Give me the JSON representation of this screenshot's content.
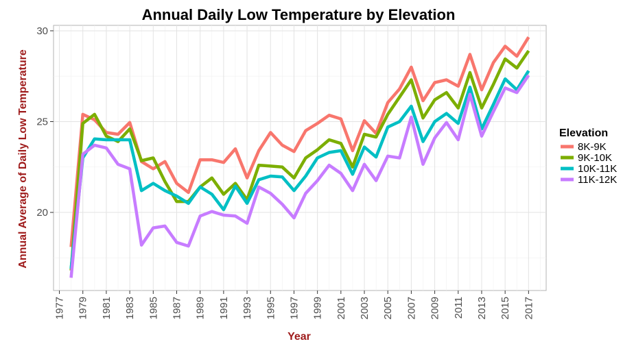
{
  "chart_data": {
    "type": "line",
    "title": "Annual Daily Low Temperature by Elevation",
    "xlabel": "Year",
    "ylabel": "Annual Average of Daily Low Temperature",
    "xlim": [
      1976.5,
      2018.5
    ],
    "ylim": [
      15.7,
      30.3
    ],
    "grid": true,
    "legend": {
      "title": "Elevation",
      "placement": "right"
    },
    "xticks": [
      1977,
      1979,
      1981,
      1983,
      1985,
      1987,
      1989,
      1991,
      1993,
      1995,
      1997,
      1999,
      2001,
      2003,
      2005,
      2007,
      2009,
      2011,
      2013,
      2015,
      2017
    ],
    "yticks": [
      20,
      25,
      30
    ],
    "x": [
      1978,
      1979,
      1980,
      1981,
      1982,
      1983,
      1984,
      1985,
      1986,
      1987,
      1988,
      1989,
      1990,
      1991,
      1992,
      1993,
      1994,
      1995,
      1996,
      1997,
      1998,
      1999,
      2000,
      2001,
      2002,
      2003,
      2004,
      2005,
      2006,
      2007,
      2008,
      2009,
      2010,
      2011,
      2012,
      2013,
      2014,
      2015,
      2016,
      2017
    ],
    "series": [
      {
        "name": "8K-9K",
        "color": "#F8766D",
        "values": [
          18.1,
          25.4,
          25.1,
          24.4,
          24.3,
          24.95,
          22.8,
          22.4,
          22.8,
          21.6,
          21.1,
          22.9,
          22.9,
          22.75,
          23.5,
          21.9,
          23.4,
          24.4,
          23.7,
          23.35,
          24.5,
          24.9,
          25.35,
          25.15,
          23.4,
          25.05,
          24.35,
          26.05,
          26.8,
          28.0,
          26.15,
          27.15,
          27.3,
          26.95,
          28.7,
          26.75,
          28.25,
          29.15,
          28.6,
          29.65
        ]
      },
      {
        "name": "9K-10K",
        "color": "#7CAE00",
        "values": [
          16.8,
          24.9,
          25.4,
          24.2,
          23.9,
          24.6,
          22.85,
          23.0,
          21.7,
          20.6,
          20.6,
          21.4,
          21.9,
          21.0,
          21.6,
          20.7,
          22.6,
          22.55,
          22.5,
          21.9,
          23.0,
          23.45,
          24.0,
          23.8,
          22.5,
          24.3,
          24.15,
          25.4,
          26.35,
          27.3,
          25.2,
          26.2,
          26.6,
          25.75,
          27.7,
          25.75,
          27.05,
          28.45,
          27.95,
          28.9
        ]
      },
      {
        "name": "10K-11K",
        "color": "#00BFC4",
        "values": [
          16.9,
          23.0,
          24.05,
          24.0,
          24.0,
          24.0,
          21.2,
          21.6,
          21.2,
          20.9,
          20.5,
          21.4,
          21.0,
          20.15,
          21.45,
          20.5,
          21.8,
          22.0,
          21.95,
          21.2,
          22.0,
          23.0,
          23.3,
          23.4,
          22.1,
          23.6,
          23.05,
          24.7,
          25.0,
          25.85,
          23.9,
          25.0,
          25.45,
          24.9,
          26.9,
          24.6,
          25.95,
          27.35,
          26.75,
          27.8
        ]
      },
      {
        "name": "11K-12K",
        "color": "#C77CFF",
        "values": [
          16.4,
          23.2,
          23.7,
          23.55,
          22.65,
          22.4,
          18.2,
          19.15,
          19.25,
          18.35,
          18.15,
          19.8,
          20.05,
          19.85,
          19.8,
          19.4,
          21.4,
          21.05,
          20.45,
          19.7,
          21.05,
          21.75,
          22.6,
          22.15,
          21.2,
          22.65,
          21.75,
          23.1,
          23.0,
          25.25,
          22.65,
          24.1,
          24.95,
          24.0,
          26.5,
          24.2,
          25.55,
          26.85,
          26.6,
          27.55
        ]
      }
    ]
  }
}
